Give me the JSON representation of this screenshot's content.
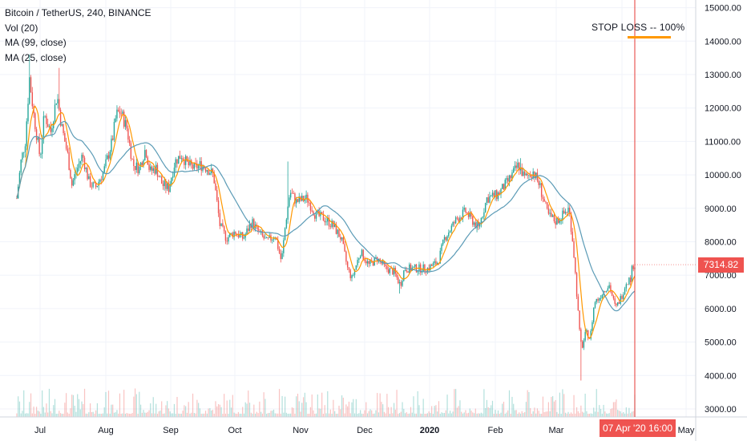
{
  "legend": {
    "title": "Bitcoin / TetherUS, 240, BINANCE",
    "vol": "Vol (20)",
    "ma99": "MA (99, close)",
    "ma25": "MA (25, close)"
  },
  "annotation": {
    "text": "STOP LOSS -- 100%"
  },
  "last_price_label": "7314.82",
  "cursor_date_label": "07 Apr '20   16:00",
  "colors": {
    "up": "#26a69a",
    "down": "#ef5350",
    "ma25": "#ff9800",
    "ma99": "#5b9bb6",
    "vertical_line": "#e53935",
    "badge": "#ef5350"
  },
  "chart_data": {
    "type": "candlestick",
    "ylim": [
      2800,
      15300
    ],
    "y_ticks": [
      "3000.00",
      "4000.00",
      "5000.00",
      "6000.00",
      "7000.00",
      "8000.00",
      "9000.00",
      "10000.00",
      "11000.00",
      "12000.00",
      "13000.00",
      "14000.00",
      "15000.00"
    ],
    "x_ticks": [
      "Jul",
      "Aug",
      "Sep",
      "Oct",
      "Nov",
      "Dec",
      "2020",
      "Feb",
      "Mar",
      "Apr",
      "May"
    ],
    "price_path": [
      [
        "2019-06-20",
        9300
      ],
      [
        "2019-06-22",
        10400
      ],
      [
        "2019-06-24",
        11000
      ],
      [
        "2019-06-26",
        12900
      ],
      [
        "2019-06-28",
        11800
      ],
      [
        "2019-07-01",
        10500
      ],
      [
        "2019-07-03",
        11800
      ],
      [
        "2019-07-06",
        11300
      ],
      [
        "2019-07-09",
        12400
      ],
      [
        "2019-07-11",
        11500
      ],
      [
        "2019-07-14",
        10600
      ],
      [
        "2019-07-16",
        9700
      ],
      [
        "2019-07-18",
        10100
      ],
      [
        "2019-07-21",
        10600
      ],
      [
        "2019-07-24",
        9800
      ],
      [
        "2019-07-27",
        9600
      ],
      [
        "2019-07-31",
        10100
      ],
      [
        "2019-08-04",
        11000
      ],
      [
        "2019-08-06",
        11800
      ],
      [
        "2019-08-08",
        11900
      ],
      [
        "2019-08-11",
        11400
      ],
      [
        "2019-08-14",
        10300
      ],
      [
        "2019-08-17",
        10200
      ],
      [
        "2019-08-20",
        10800
      ],
      [
        "2019-08-22",
        10100
      ],
      [
        "2019-08-25",
        10200
      ],
      [
        "2019-08-28",
        9700
      ],
      [
        "2019-08-31",
        9600
      ],
      [
        "2019-09-03",
        10400
      ],
      [
        "2019-09-06",
        10600
      ],
      [
        "2019-09-09",
        10300
      ],
      [
        "2019-09-12",
        10200
      ],
      [
        "2019-09-15",
        10300
      ],
      [
        "2019-09-18",
        10200
      ],
      [
        "2019-09-21",
        10000
      ],
      [
        "2019-09-24",
        8500
      ],
      [
        "2019-09-27",
        8100
      ],
      [
        "2019-10-01",
        8300
      ],
      [
        "2019-10-05",
        8100
      ],
      [
        "2019-10-09",
        8600
      ],
      [
        "2019-10-12",
        8300
      ],
      [
        "2019-10-16",
        8000
      ],
      [
        "2019-10-20",
        8200
      ],
      [
        "2019-10-23",
        7400
      ],
      [
        "2019-10-25",
        8600
      ],
      [
        "2019-10-27",
        9500
      ],
      [
        "2019-10-30",
        9200
      ],
      [
        "2019-11-04",
        9300
      ],
      [
        "2019-11-08",
        8800
      ],
      [
        "2019-11-12",
        8700
      ],
      [
        "2019-11-16",
        8500
      ],
      [
        "2019-11-20",
        8100
      ],
      [
        "2019-11-23",
        7200
      ],
      [
        "2019-11-25",
        6900
      ],
      [
        "2019-11-29",
        7700
      ],
      [
        "2019-12-03",
        7300
      ],
      [
        "2019-12-07",
        7500
      ],
      [
        "2019-12-11",
        7200
      ],
      [
        "2019-12-15",
        7100
      ],
      [
        "2019-12-18",
        6700
      ],
      [
        "2019-12-20",
        7200
      ],
      [
        "2019-12-26",
        7200
      ],
      [
        "2019-12-31",
        7200
      ],
      [
        "2020-01-05",
        7400
      ],
      [
        "2020-01-08",
        8100
      ],
      [
        "2020-01-14",
        8700
      ],
      [
        "2020-01-18",
        8900
      ],
      [
        "2020-01-24",
        8400
      ],
      [
        "2020-01-28",
        9300
      ],
      [
        "2020-02-02",
        9400
      ],
      [
        "2020-02-07",
        9800
      ],
      [
        "2020-02-12",
        10300
      ],
      [
        "2020-02-15",
        9900
      ],
      [
        "2020-02-19",
        10100
      ],
      [
        "2020-02-22",
        9700
      ],
      [
        "2020-02-26",
        8800
      ],
      [
        "2020-03-01",
        8600
      ],
      [
        "2020-03-04",
        8800
      ],
      [
        "2020-03-07",
        9000
      ],
      [
        "2020-03-09",
        7900
      ],
      [
        "2020-03-12",
        5300
      ],
      [
        "2020-03-13",
        4800
      ],
      [
        "2020-03-15",
        5300
      ],
      [
        "2020-03-17",
        5100
      ],
      [
        "2020-03-19",
        6200
      ],
      [
        "2020-03-21",
        6300
      ],
      [
        "2020-03-24",
        6600
      ],
      [
        "2020-03-26",
        6700
      ],
      [
        "2020-03-29",
        6000
      ],
      [
        "2020-04-01",
        6400
      ],
      [
        "2020-04-03",
        6800
      ],
      [
        "2020-04-05",
        6900
      ],
      [
        "2020-04-06",
        7300
      ],
      [
        "2020-04-07",
        7315
      ]
    ]
  }
}
